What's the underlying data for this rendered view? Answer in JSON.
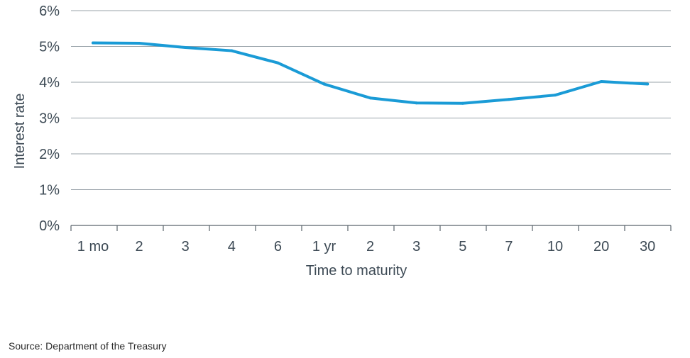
{
  "chart_data": {
    "type": "line",
    "xlabel": "Time to maturity",
    "ylabel": "Interest rate",
    "categories": [
      "1 mo",
      "2",
      "3",
      "4",
      "6",
      "1 yr",
      "2",
      "3",
      "5",
      "7",
      "10",
      "20",
      "30"
    ],
    "series": [
      {
        "values": [
          5.1,
          5.09,
          4.97,
          4.88,
          4.54,
          3.95,
          3.56,
          3.42,
          3.41,
          3.52,
          3.64,
          4.02,
          3.95
        ]
      }
    ],
    "ylim": [
      0,
      6
    ],
    "yticks": [
      "0%",
      "1%",
      "2%",
      "3%",
      "4%",
      "5%",
      "6%"
    ],
    "grid": true,
    "line_color": "#1a9bd6",
    "grid_color": "#9aa3aa"
  },
  "source": "Source: Department of the Treasury"
}
